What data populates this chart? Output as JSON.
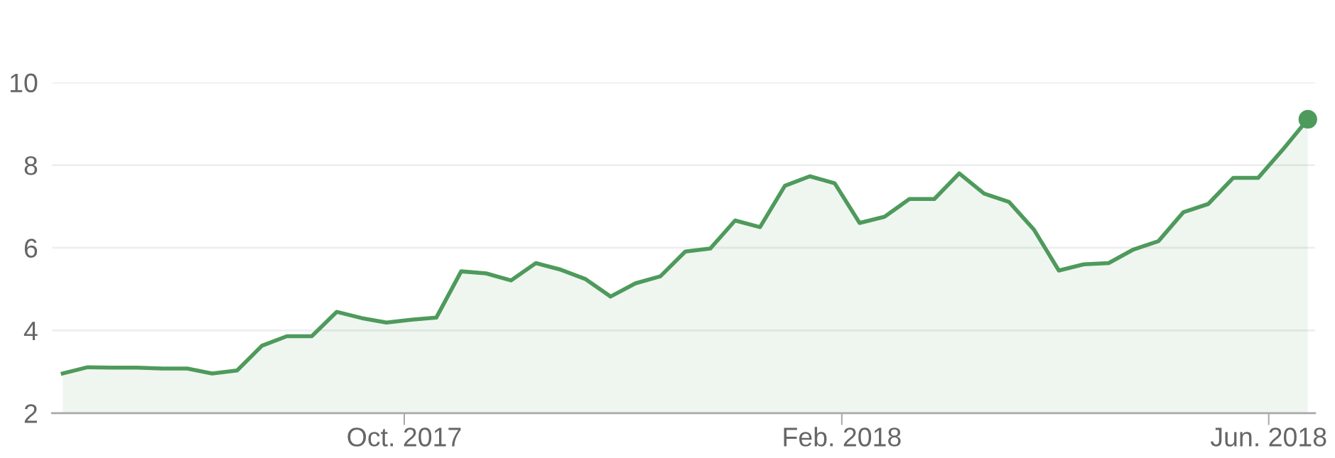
{
  "chart_data": {
    "type": "area",
    "x": [
      "2017-06-27",
      "2017-07-04",
      "2017-07-11",
      "2017-07-18",
      "2017-07-25",
      "2017-08-01",
      "2017-08-08",
      "2017-08-15",
      "2017-08-22",
      "2017-08-29",
      "2017-09-05",
      "2017-09-12",
      "2017-09-19",
      "2017-09-26",
      "2017-10-03",
      "2017-10-10",
      "2017-10-17",
      "2017-10-24",
      "2017-10-31",
      "2017-11-07",
      "2017-11-14",
      "2017-11-21",
      "2017-11-28",
      "2017-12-05",
      "2017-12-12",
      "2017-12-19",
      "2017-12-26",
      "2018-01-02",
      "2018-01-09",
      "2018-01-16",
      "2018-01-23",
      "2018-01-30",
      "2018-02-06",
      "2018-02-13",
      "2018-02-20",
      "2018-02-27",
      "2018-03-06",
      "2018-03-13",
      "2018-03-20",
      "2018-03-27",
      "2018-04-03",
      "2018-04-10",
      "2018-04-17",
      "2018-04-24",
      "2018-05-01",
      "2018-05-08",
      "2018-05-15",
      "2018-05-22",
      "2018-05-29",
      "2018-06-05",
      "2018-06-12"
    ],
    "series": [
      {
        "color": "#4e9a5c",
        "values": [
          2.96,
          3.11,
          3.1,
          3.1,
          3.08,
          3.08,
          2.96,
          3.03,
          3.63,
          3.86,
          3.86,
          4.45,
          4.3,
          4.19,
          4.26,
          4.31,
          5.43,
          5.38,
          5.21,
          5.63,
          5.47,
          5.24,
          4.82,
          5.14,
          5.31,
          5.91,
          5.98,
          6.66,
          6.5,
          7.5,
          7.73,
          7.56,
          6.6,
          6.75,
          7.18,
          7.18,
          7.8,
          7.31,
          7.11,
          6.44,
          5.45,
          5.6,
          5.63,
          5.96,
          6.16,
          6.86,
          7.06,
          7.69,
          7.69,
          8.38,
          9.11
        ]
      },
      {
        "type": "scatter",
        "color": "#4e9a5c",
        "marker": "circle",
        "x": [
          "2018-06-12"
        ],
        "values": [
          9.11
        ]
      }
    ],
    "xlim": [
      "2017-06-24",
      "2018-06-14"
    ],
    "xticks": [
      {
        "value": "2017-10-01",
        "label": "Oct. 2017"
      },
      {
        "value": "2018-02-01",
        "label": "Feb. 2018"
      },
      {
        "value": "2018-06-01",
        "label": "Jun. 2018"
      }
    ],
    "ylim": [
      2,
      10
    ],
    "yticks": [
      2,
      4,
      6,
      8,
      10
    ],
    "grid": "y",
    "legend": false
  }
}
